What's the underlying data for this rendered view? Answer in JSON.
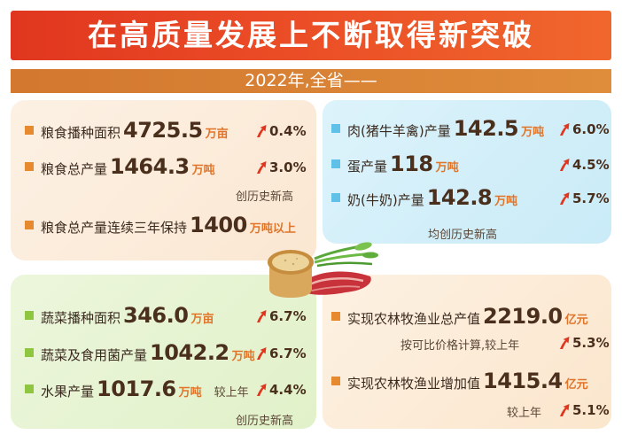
{
  "header": {
    "title": "在高质量发展上不断取得新突破",
    "subtitle": "2022年,全省——"
  },
  "grain": {
    "items": [
      {
        "label": "粮食播种面积",
        "value": "4725.5",
        "unit": "万亩",
        "change": "0.4%"
      },
      {
        "label": "粮食总产量",
        "value": "1464.3",
        "unit": "万吨",
        "change": "3.0%"
      }
    ],
    "note": "创历史新高",
    "streak": {
      "label": "粮食总产量连续三年保持",
      "value": "1400",
      "unit": "万吨以上"
    }
  },
  "livestock": {
    "items": [
      {
        "label": "肉(猪牛羊禽)产量",
        "value": "142.5",
        "unit": "万吨",
        "change": "6.0%"
      },
      {
        "label": "蛋产量",
        "value": "118",
        "unit": "万吨",
        "change": "4.5%"
      },
      {
        "label": "奶(牛奶)产量",
        "value": "142.8",
        "unit": "万吨",
        "change": "5.7%"
      }
    ],
    "note": "均创历史新高"
  },
  "produce": {
    "items": [
      {
        "label": "蔬菜播种面积",
        "value": "346.0",
        "unit": "万亩",
        "change": "6.7%"
      },
      {
        "label": "蔬菜及食用菌产量",
        "value": "1042.2",
        "unit": "万吨",
        "change": "6.7%"
      },
      {
        "label": "水果产量",
        "value": "1017.6",
        "unit": "万吨",
        "prefix": "较上年",
        "change": "4.4%"
      }
    ],
    "note": "创历史新高"
  },
  "agri": {
    "total": {
      "label": "实现农林牧渔业总产值",
      "value": "2219.0",
      "unit": "亿元",
      "note": "按可比价格计算,较上年",
      "change": "5.3%"
    },
    "added": {
      "label": "实现农林牧渔业增加值",
      "value": "1415.4",
      "unit": "亿元",
      "note": "较上年",
      "change": "5.1%"
    }
  },
  "colors": {
    "banner": "#e0361f",
    "subbar": "#d2782f",
    "accent_unit": "#e0752a",
    "arrow": "#e0361f",
    "grain_marker": "#e7892f",
    "livestock_marker": "#5fc0e8",
    "produce_marker": "#8fc640"
  },
  "icons": [
    "up-arrow-icon",
    "bread-icon",
    "vegetables-icon",
    "meat-icon"
  ]
}
